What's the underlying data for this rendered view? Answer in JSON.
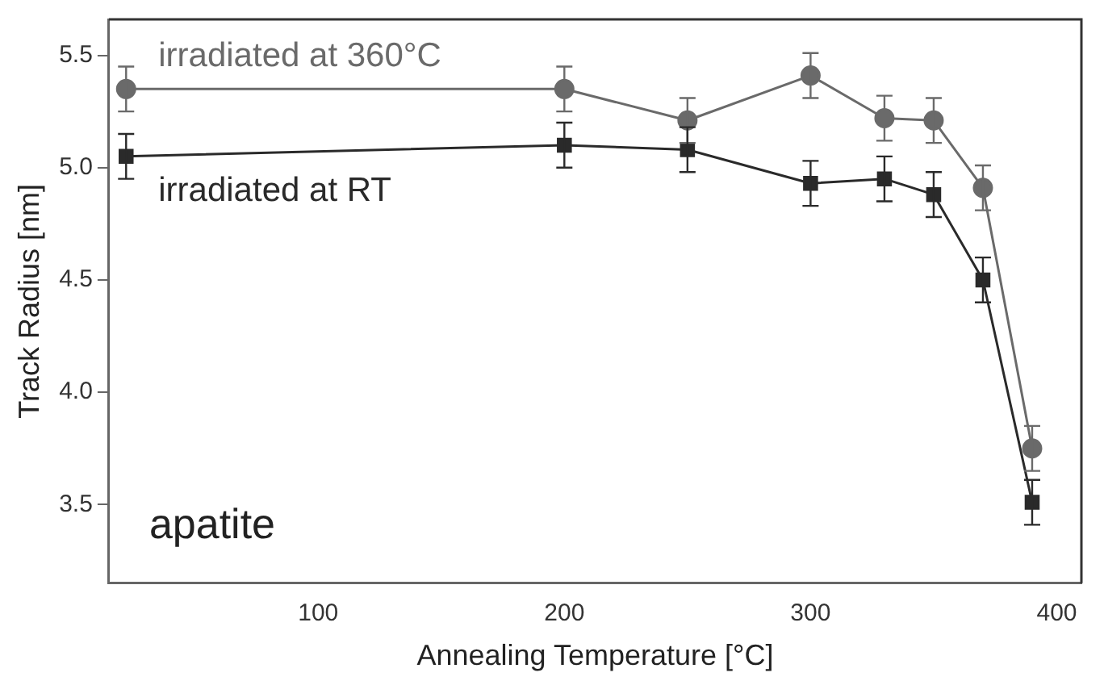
{
  "chart_data": {
    "type": "line",
    "xlabel": "Annealing Temperature [°C]",
    "ylabel": "Track Radius [nm]",
    "x": [
      22,
      200,
      250,
      300,
      330,
      350,
      370,
      390
    ],
    "series": [
      {
        "name": "irradiated at 360°C",
        "color": "#6a6a6a",
        "marker": "circle",
        "values": [
          5.35,
          5.35,
          5.21,
          5.41,
          5.22,
          5.21,
          4.91,
          3.75
        ],
        "errors": [
          0.1,
          0.1,
          0.1,
          0.1,
          0.1,
          0.1,
          0.1,
          0.1
        ]
      },
      {
        "name": "irradiated at RT",
        "color": "#2a2a2a",
        "marker": "square",
        "values": [
          5.05,
          5.1,
          5.08,
          4.93,
          4.95,
          4.88,
          4.5,
          3.51
        ],
        "errors": [
          0.1,
          0.1,
          0.1,
          0.1,
          0.1,
          0.1,
          0.1,
          0.1
        ]
      }
    ],
    "xlim": [
      15,
      410
    ],
    "xticks": [
      100,
      200,
      300,
      400
    ],
    "ylim": [
      3.15,
      5.66
    ],
    "yticks": [
      {
        "value": 3.5,
        "label": "3.5"
      },
      {
        "value": 4,
        "label": "4.0"
      },
      {
        "value": 4.5,
        "label": "4.5"
      },
      {
        "value": 5,
        "label": "5.0"
      },
      {
        "value": 5.5,
        "label": "5.5"
      }
    ],
    "grid": false,
    "legend": false,
    "annotations": [
      "apatite"
    ]
  }
}
